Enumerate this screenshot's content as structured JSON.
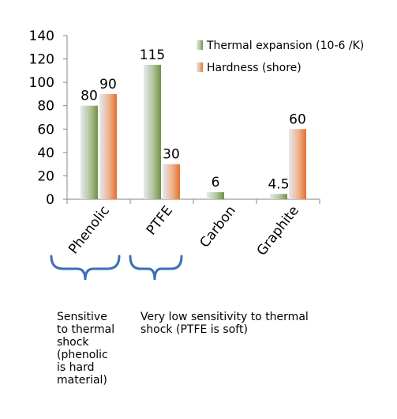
{
  "chart_data": {
    "type": "bar",
    "categories": [
      "Phenolic",
      "PTFE",
      "Carbon",
      "Graphite"
    ],
    "series": [
      {
        "name": "Thermal expansion (10-6 /K)",
        "values": [
          80,
          115,
          6,
          4.5
        ],
        "labels": [
          "80",
          "115",
          "6",
          "4.5"
        ],
        "color": "#7f9f4f"
      },
      {
        "name": "Hardness (shore)",
        "values": [
          90,
          30,
          null,
          60
        ],
        "labels": [
          "90",
          "30",
          "",
          "60"
        ],
        "color": "#e8824a"
      }
    ],
    "yticks": [
      "0",
      "20",
      "40",
      "60",
      "80",
      "100",
      "120",
      "140"
    ],
    "ylim": [
      0,
      140
    ],
    "grid": false,
    "legend_position": "top-right"
  },
  "annotations": {
    "left_note": "Sensitive\nto thermal\nshock\n(phenolic\nis hard\nmaterial)",
    "right_note": "Very low sensitivity to thermal\nshock (PTFE is soft)"
  },
  "colors": {
    "brace": "#3a6fb5",
    "axis": "#868686"
  }
}
